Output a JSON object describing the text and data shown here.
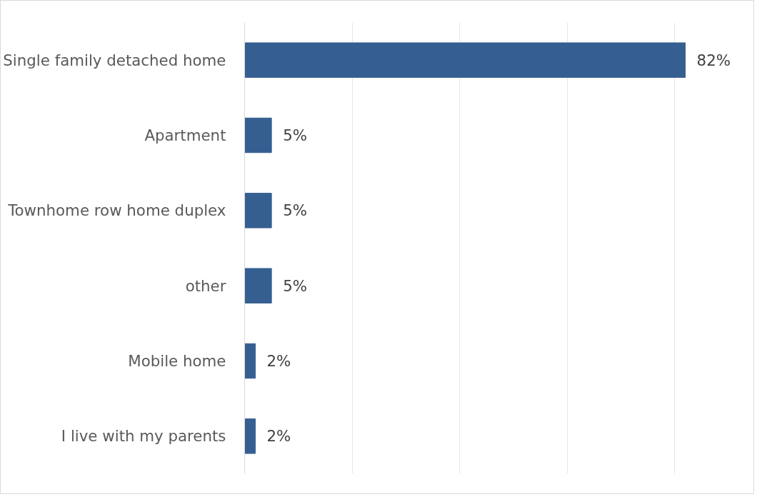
{
  "chart_data": {
    "type": "bar",
    "orientation": "horizontal",
    "categories": [
      "Single family detached home",
      "Apartment",
      "Townhome row home duplex",
      "other",
      "Mobile home",
      "I live with my parents"
    ],
    "values": [
      82,
      5,
      5,
      5,
      2,
      2
    ],
    "color": "#365f91",
    "value_labels": [
      "82%",
      "5%",
      "5%",
      "5%",
      "2%",
      "2%"
    ],
    "grid": "x",
    "tick_labels": "y"
  }
}
